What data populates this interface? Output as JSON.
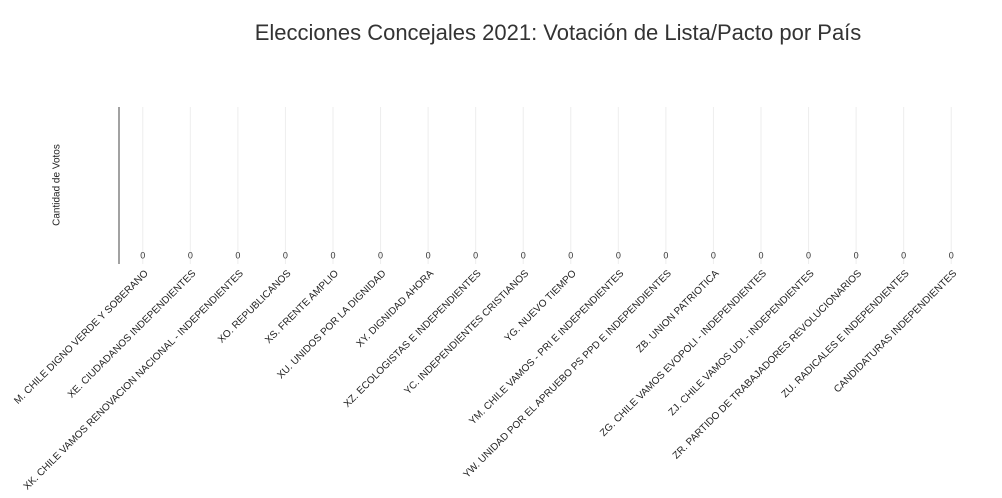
{
  "chart_data": {
    "type": "bar",
    "title": "Elecciones Concejales 2021: Votación de Lista/Pacto por País",
    "y_label": "Cantidad de Votos",
    "categories": [
      "M. CHILE DIGNO VERDE Y SOBERANO",
      "XE. CIUDADANOS INDEPENDIENTES",
      "XK. CHILE VAMOS RENOVACION NACIONAL - INDEPENDIENTES",
      "XO. REPUBLICANOS",
      "XS. FRENTE AMPLIO",
      "XU. UNIDOS POR LA DIGNIDAD",
      "XY. DIGNIDAD AHORA",
      "XZ. ECOLOGISTAS E INDEPENDIENTES",
      "YC. INDEPENDIENTES CRISTIANOS",
      "YG. NUEVO TIEMPO",
      "YM. CHILE VAMOS - PRI E INDEPENDIENTES",
      "YW. UNIDAD POR EL APRUEBO PS PPD E INDEPENDIENTES",
      "ZB. UNION PATRIOTICA",
      "ZG. CHILE VAMOS EVOPOLI - INDEPENDIENTES",
      "ZJ. CHILE VAMOS UDI - INDEPENDIENTES",
      "ZR. PARTIDO DE TRABAJADORES REVOLUCIONARIOS",
      "ZU. RADICALES E INDEPENDIENTES",
      "CANDIDATURAS INDEPENDIENTES"
    ],
    "values": [
      0,
      0,
      0,
      0,
      0,
      0,
      0,
      0,
      0,
      0,
      0,
      0,
      0,
      0,
      0,
      0,
      0,
      0
    ],
    "colors": [
      "#1f77b4",
      "#aec7e8",
      "#ff7f0e",
      "#ffbb78",
      "#2ca02c",
      "#98df8a",
      "#d62728",
      "#ff9896",
      "#9467bd",
      "#c5b0d5",
      "#8c564b",
      "#c49c94",
      "#e377c2",
      "#f7b6d2",
      "#7f7f7f",
      "#c7c7c7",
      "#bcbd22",
      "#dbdb8d"
    ],
    "ylim": [
      0,
      1
    ],
    "grid": true
  }
}
